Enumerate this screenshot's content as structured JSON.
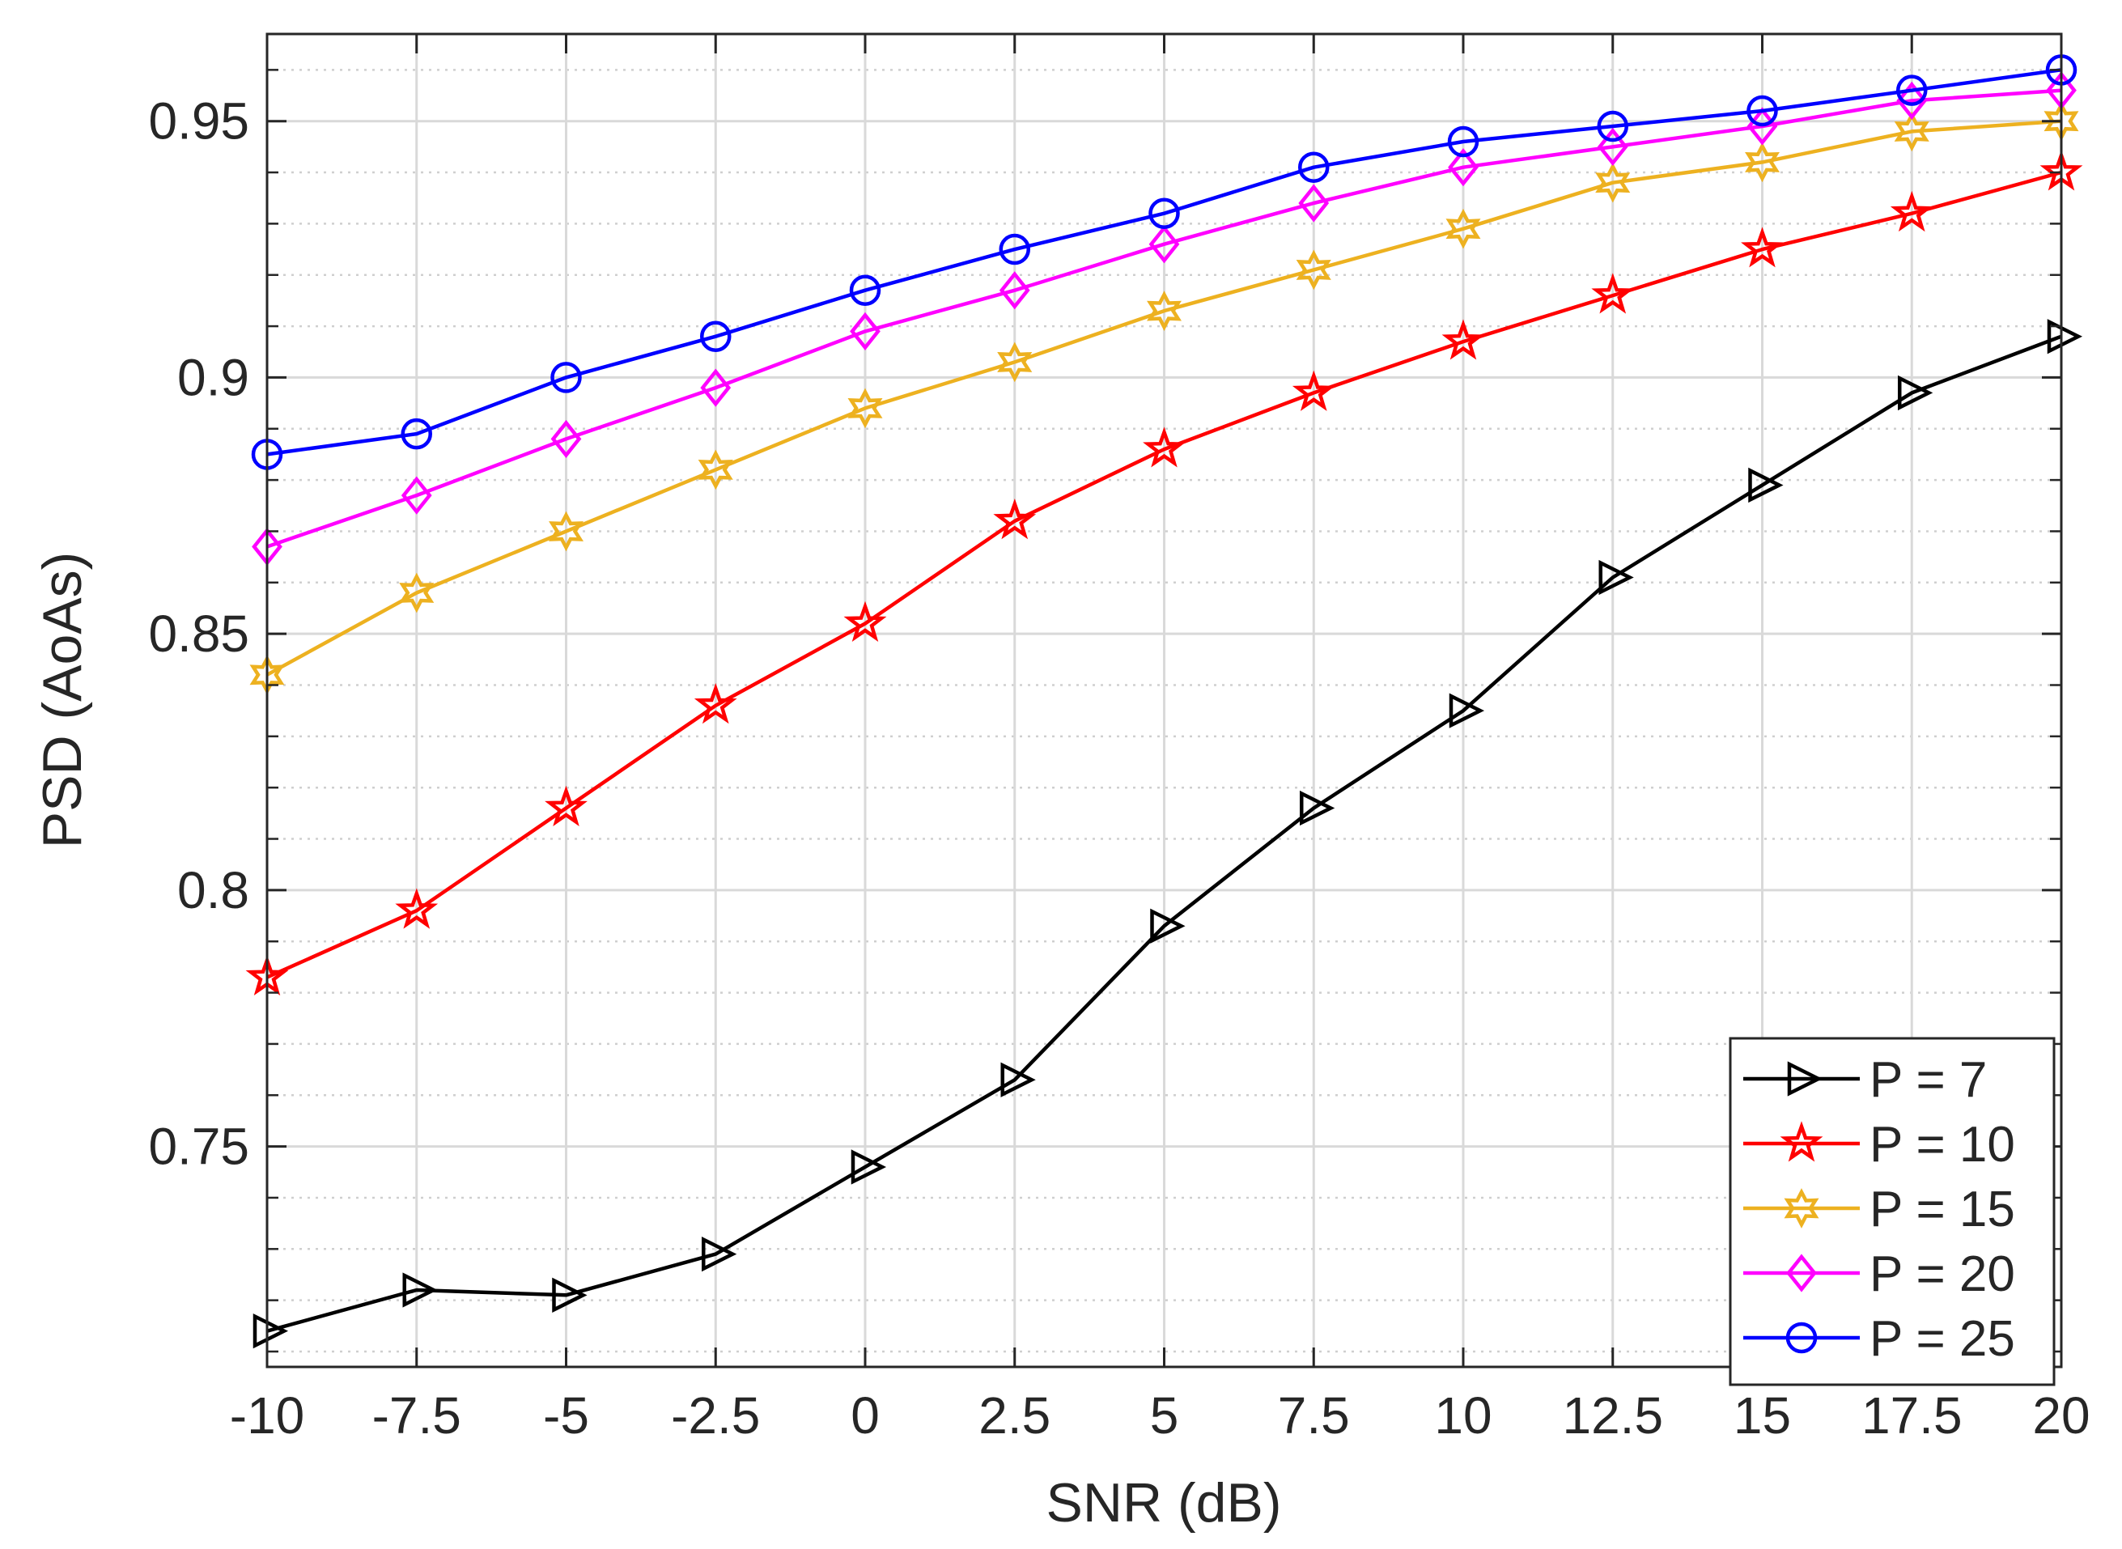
{
  "chart_data": {
    "type": "line",
    "title": "",
    "xlabel": "SNR (dB)",
    "ylabel": "PSD (AoAs)",
    "xlim": [
      -10,
      20
    ],
    "ylim": [
      0.707,
      0.967
    ],
    "grid": true,
    "legend_position": "bottom-right",
    "x": [
      -10,
      -7.5,
      -5,
      -2.5,
      0,
      2.5,
      5,
      7.5,
      10,
      12.5,
      15,
      17.5,
      20
    ],
    "x_tick_labels": [
      "-10",
      "-7.5",
      "-5",
      "-2.5",
      "0",
      "2.5",
      "5",
      "7.5",
      "10",
      "12.5",
      "15",
      "17.5",
      "20"
    ],
    "y_ticks": [
      0.75,
      0.8,
      0.85,
      0.9,
      0.95
    ],
    "y_tick_labels": [
      "0.75",
      "0.8",
      "0.85",
      "0.9",
      "0.95"
    ],
    "series": [
      {
        "name": "P = 7",
        "color": "#000000",
        "marker": "triangle-right",
        "values": [
          0.714,
          0.722,
          0.721,
          0.729,
          0.746,
          0.763,
          0.793,
          0.816,
          0.835,
          0.861,
          0.879,
          0.897,
          0.908
        ]
      },
      {
        "name": "P = 10",
        "color": "#ff0000",
        "marker": "pentagram",
        "values": [
          0.783,
          0.796,
          0.816,
          0.836,
          0.852,
          0.872,
          0.886,
          0.897,
          0.907,
          0.916,
          0.925,
          0.932,
          0.94
        ]
      },
      {
        "name": "P = 15",
        "color": "#edb120",
        "marker": "hexagram",
        "values": [
          0.842,
          0.858,
          0.87,
          0.882,
          0.894,
          0.903,
          0.913,
          0.921,
          0.929,
          0.938,
          0.942,
          0.948,
          0.95
        ]
      },
      {
        "name": "P = 20",
        "color": "#ff00ff",
        "marker": "diamond",
        "values": [
          0.867,
          0.877,
          0.888,
          0.898,
          0.909,
          0.917,
          0.926,
          0.934,
          0.941,
          0.945,
          0.949,
          0.954,
          0.956
        ]
      },
      {
        "name": "P = 25",
        "color": "#0000ff",
        "marker": "circle",
        "values": [
          0.885,
          0.889,
          0.9,
          0.908,
          0.917,
          0.925,
          0.932,
          0.941,
          0.946,
          0.949,
          0.952,
          0.956,
          0.96
        ]
      }
    ]
  }
}
